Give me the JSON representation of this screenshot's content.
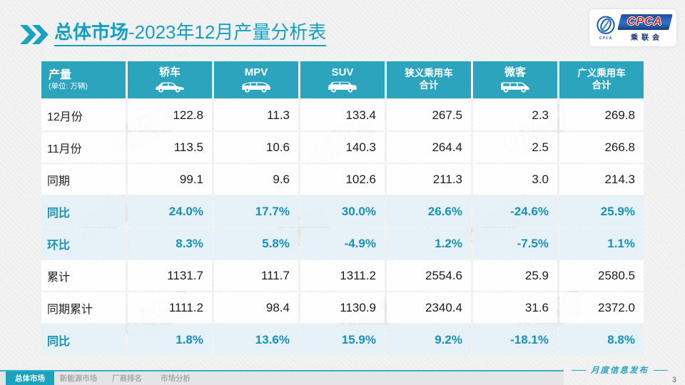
{
  "header": {
    "title_bold": "总体市场",
    "title_rest": "-2023年12月产量分析表",
    "chevron_icon": "double-chevron",
    "logo": {
      "en": "CPCA",
      "cn": "乘联会",
      "emblem_text": "CPCA",
      "emblem_icon": "cpca-emblem"
    }
  },
  "colors": {
    "accent_teal": "#13A0C0",
    "table_header_teal": "#2CA4BE",
    "pct_row_bg": "#E5F1F8",
    "pct_text": "#1792B6",
    "logo_blue": "#1C4FA0",
    "logo_red": "#D5281E",
    "tab_active": "#1BA2BE"
  },
  "table": {
    "corner": {
      "title": "产量",
      "unit": "(单位: 万辆)"
    },
    "columns": [
      {
        "label": "轿车",
        "icon": "sedan"
      },
      {
        "label": "MPV",
        "icon": "mpv"
      },
      {
        "label": "SUV",
        "icon": "suv"
      },
      {
        "label": "狭义乘用车",
        "label2": "合计"
      },
      {
        "label": "微客",
        "icon": "van"
      },
      {
        "label": "广义乘用车",
        "label2": "合计"
      }
    ],
    "rows": [
      {
        "label": "12月份",
        "type": "normal",
        "values": [
          "122.8",
          "11.3",
          "133.4",
          "267.5",
          "2.3",
          "269.8"
        ]
      },
      {
        "label": "11月份",
        "type": "normal",
        "values": [
          "113.5",
          "10.6",
          "140.3",
          "264.4",
          "2.5",
          "266.8"
        ]
      },
      {
        "label": "同期",
        "type": "normal",
        "values": [
          "99.1",
          "9.6",
          "102.6",
          "211.3",
          "3.0",
          "214.3"
        ]
      },
      {
        "label": "同比",
        "type": "pct",
        "values": [
          "24.0%",
          "17.7%",
          "30.0%",
          "26.6%",
          "-24.6%",
          "25.9%"
        ]
      },
      {
        "label": "环比",
        "type": "pct",
        "values": [
          "8.3%",
          "5.8%",
          "-4.9%",
          "1.2%",
          "-7.5%",
          "1.1%"
        ]
      },
      {
        "label": "累计",
        "type": "normal",
        "values": [
          "1131.7",
          "111.7",
          "1311.2",
          "2554.6",
          "25.9",
          "2580.5"
        ]
      },
      {
        "label": "同期累计",
        "type": "normal",
        "values": [
          "1111.2",
          "98.4",
          "1130.9",
          "2340.4",
          "31.6",
          "2372.0"
        ]
      },
      {
        "label": "同比",
        "type": "pct",
        "values": [
          "1.8%",
          "13.6%",
          "15.9%",
          "9.2%",
          "-18.1%",
          "8.8%"
        ]
      }
    ]
  },
  "footer": {
    "tabs": [
      {
        "label": "总体市场",
        "active": true
      },
      {
        "label": "新能源市场",
        "active": false
      },
      {
        "label": "厂商排名",
        "active": false
      },
      {
        "label": "市场分析",
        "active": false
      }
    ],
    "release_label": "月度信息发布",
    "page_number": "3"
  },
  "watermark_text": {
    "en": "CPCA",
    "cn": "乘联会"
  }
}
